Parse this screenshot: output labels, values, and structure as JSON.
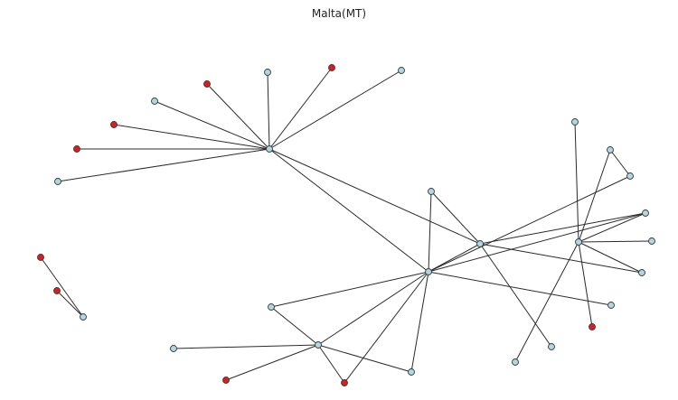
{
  "title": "Malta(MT)",
  "colors": {
    "node_default": "#add8e6",
    "node_highlight": "#dd1c1c",
    "edge": "#2b2b2b"
  },
  "graph": {
    "nodes": [
      {
        "id": "hub1",
        "kind": "default"
      },
      {
        "id": "n_top",
        "kind": "default"
      },
      {
        "id": "r_top",
        "kind": "highlight"
      },
      {
        "id": "n_top_right",
        "kind": "default"
      },
      {
        "id": "r_left_top",
        "kind": "highlight"
      },
      {
        "id": "n_left_upper",
        "kind": "default"
      },
      {
        "id": "r_left_mid1",
        "kind": "highlight"
      },
      {
        "id": "r_left_mid2",
        "kind": "highlight"
      },
      {
        "id": "n_left_low",
        "kind": "default"
      },
      {
        "id": "hub_center",
        "kind": "default"
      },
      {
        "id": "hub_mid",
        "kind": "default"
      },
      {
        "id": "hub_right",
        "kind": "default"
      },
      {
        "id": "n_mid_top",
        "kind": "default"
      },
      {
        "id": "n_right_top",
        "kind": "default"
      },
      {
        "id": "n_right_tri1",
        "kind": "default"
      },
      {
        "id": "n_right_tri2",
        "kind": "default"
      },
      {
        "id": "n_right_a",
        "kind": "default"
      },
      {
        "id": "n_right_b",
        "kind": "default"
      },
      {
        "id": "n_right_c",
        "kind": "default"
      },
      {
        "id": "n_right_d",
        "kind": "default"
      },
      {
        "id": "r_right_low",
        "kind": "highlight"
      },
      {
        "id": "n_low_right",
        "kind": "default"
      },
      {
        "id": "n_low_mid",
        "kind": "default"
      },
      {
        "id": "hub_low",
        "kind": "default"
      },
      {
        "id": "n_low_left",
        "kind": "default"
      },
      {
        "id": "n_low_top",
        "kind": "default"
      },
      {
        "id": "r_low_left",
        "kind": "highlight"
      },
      {
        "id": "r_low_center",
        "kind": "highlight"
      },
      {
        "id": "n_low_bottom",
        "kind": "default"
      },
      {
        "id": "r_iso1",
        "kind": "highlight"
      },
      {
        "id": "r_iso2",
        "kind": "highlight"
      },
      {
        "id": "n_iso",
        "kind": "default"
      }
    ],
    "edges": [
      [
        "hub1",
        "n_top"
      ],
      [
        "hub1",
        "r_top"
      ],
      [
        "hub1",
        "n_top_right"
      ],
      [
        "hub1",
        "r_left_top"
      ],
      [
        "hub1",
        "n_left_upper"
      ],
      [
        "hub1",
        "r_left_mid1"
      ],
      [
        "hub1",
        "r_left_mid2"
      ],
      [
        "hub1",
        "n_left_low"
      ],
      [
        "hub1",
        "hub_center"
      ],
      [
        "hub1",
        "hub_mid"
      ],
      [
        "hub_center",
        "n_mid_top"
      ],
      [
        "hub_center",
        "hub_mid"
      ],
      [
        "hub_center",
        "n_right_tri2"
      ],
      [
        "hub_center",
        "n_right_a"
      ],
      [
        "hub_center",
        "n_right_d"
      ],
      [
        "hub_center",
        "n_low_top"
      ],
      [
        "hub_center",
        "hub_low"
      ],
      [
        "hub_center",
        "r_low_center"
      ],
      [
        "hub_center",
        "n_low_mid"
      ],
      [
        "hub_mid",
        "n_mid_top"
      ],
      [
        "hub_mid",
        "n_right_a"
      ],
      [
        "hub_mid",
        "n_right_c"
      ],
      [
        "hub_mid",
        "n_low_right"
      ],
      [
        "hub_right",
        "n_right_top"
      ],
      [
        "hub_right",
        "n_right_tri1"
      ],
      [
        "hub_right",
        "n_right_a"
      ],
      [
        "hub_right",
        "n_right_b"
      ],
      [
        "hub_right",
        "n_right_c"
      ],
      [
        "hub_right",
        "r_right_low"
      ],
      [
        "hub_right",
        "n_low_bottom"
      ],
      [
        "n_right_tri1",
        "n_right_tri2"
      ],
      [
        "hub_low",
        "n_low_top"
      ],
      [
        "hub_low",
        "n_low_left"
      ],
      [
        "hub_low",
        "r_low_left"
      ],
      [
        "hub_low",
        "r_low_center"
      ],
      [
        "hub_low",
        "n_low_mid"
      ],
      [
        "r_iso1",
        "n_iso"
      ],
      [
        "r_iso2",
        "n_iso"
      ]
    ]
  }
}
